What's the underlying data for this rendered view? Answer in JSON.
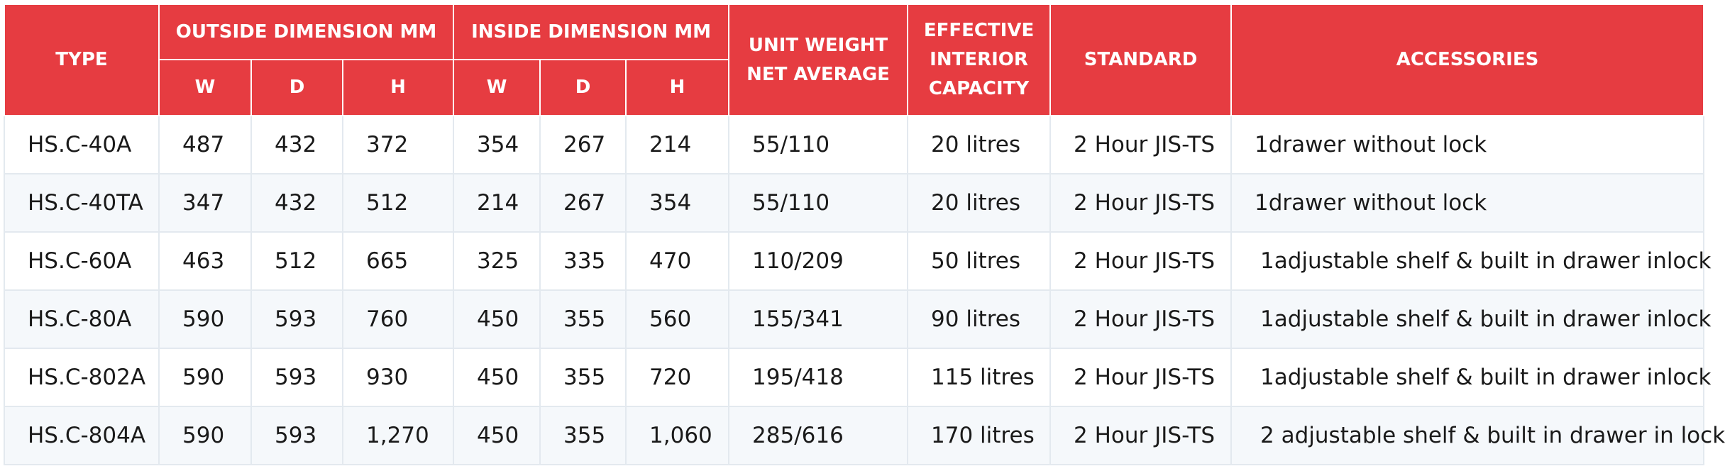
{
  "table": {
    "headers": {
      "type": "TYPE",
      "outside": "OUTSIDE DIMENSION MM",
      "inside": "INSIDE DIMENSION MM",
      "unit_weight_line1": "UNIT WEIGHT",
      "unit_weight_line2": "NET AVERAGE",
      "capacity_line1": "EFFECTIVE",
      "capacity_line2": "INTERIOR",
      "capacity_line3": "CAPACITY",
      "standard": "STANDARD",
      "accessories": "ACCESSORIES",
      "sub": [
        "W",
        "D",
        "H",
        "W",
        "D",
        "H"
      ]
    },
    "rows": [
      [
        "HS.C-40A",
        "487",
        "432",
        "372",
        "354",
        "267",
        "214",
        "55/110",
        "20 litres",
        "2 Hour JIS-TS",
        "1drawer without lock"
      ],
      [
        "HS.C-40TA",
        "347",
        "432",
        "512",
        "214",
        "267",
        "354",
        "55/110",
        "20 litres",
        "2 Hour JIS-TS",
        "1drawer without lock"
      ],
      [
        "HS.C-60A",
        "463",
        "512",
        "665",
        "325",
        "335",
        "470",
        "110/209",
        "50 litres",
        "2 Hour JIS-TS",
        "1adjustable shelf & built in drawer inlock"
      ],
      [
        "HS.C-80A",
        "590",
        "593",
        "760",
        "450",
        "355",
        "560",
        "155/341",
        "90 litres",
        "2 Hour JIS-TS",
        "1adjustable shelf & built in drawer inlock"
      ],
      [
        "HS.C-802A",
        "590",
        "593",
        "930",
        "450",
        "355",
        "720",
        "195/418",
        "115 litres",
        "2 Hour JIS-TS",
        "1adjustable shelf & built in drawer inlock"
      ],
      [
        "HS.C-804A",
        "590",
        "593",
        "1,270",
        "450",
        "355",
        "1,060",
        "285/616",
        "170 litres",
        "2 Hour JIS-TS",
        "2 adjustable shelf & built in drawer in lock"
      ]
    ]
  },
  "colors": {
    "header_bg": "#e63c41",
    "header_text": "#ffffff",
    "row_alt_bg": "#f5f8fb",
    "border": "#e3e9ef"
  }
}
